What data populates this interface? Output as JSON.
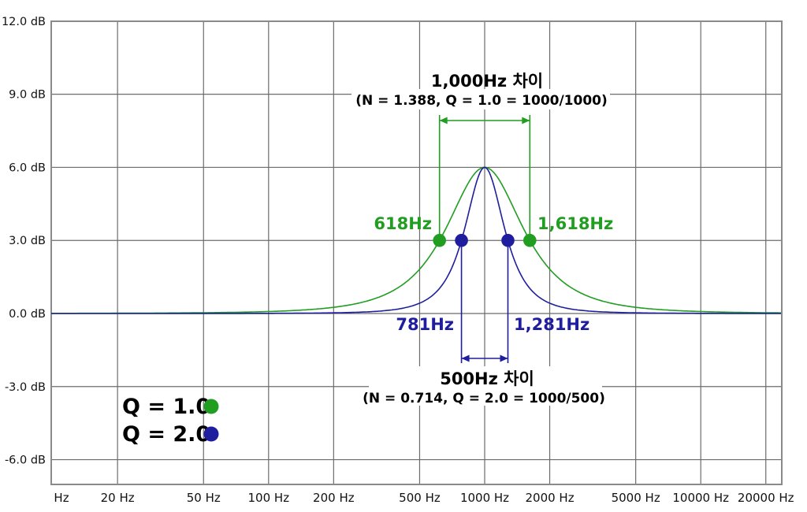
{
  "chart_data": {
    "type": "line",
    "description": "Parametric EQ peaking-filter frequency response comparison for two Q values, both centered at 1000 Hz with +6 dB gain",
    "background_color": "#ffffff",
    "grid_color": "#6b6b6b",
    "border_color": "#8a8a8a",
    "y_axis": {
      "unit": "dB",
      "min": -7,
      "max": 12,
      "ticks": [
        {
          "db": 12,
          "label": "12.0 dB"
        },
        {
          "db": 9,
          "label": "9.0 dB"
        },
        {
          "db": 6,
          "label": "6.0 dB"
        },
        {
          "db": 3,
          "label": "3.0 dB"
        },
        {
          "db": 0,
          "label": "0.0 dB"
        },
        {
          "db": -3,
          "label": "-3.0 dB"
        },
        {
          "db": -6,
          "label": "-6.0 dB"
        }
      ]
    },
    "x_axis": {
      "unit": "Hz",
      "scale": "log",
      "min_hz": 10,
      "max_hz": 23650,
      "ticks": [
        {
          "label": "Hz"
        },
        {
          "hz": 20,
          "label": "20 Hz"
        },
        {
          "hz": 50,
          "label": "50 Hz"
        },
        {
          "hz": 100,
          "label": "100 Hz"
        },
        {
          "hz": 200,
          "label": "200 Hz"
        },
        {
          "hz": 500,
          "label": "500 Hz"
        },
        {
          "hz": 1000,
          "label": "1000 Hz"
        },
        {
          "hz": 2000,
          "label": "2000 Hz"
        },
        {
          "hz": 5000,
          "label": "5000 Hz"
        },
        {
          "hz": 10000,
          "label": "10000 Hz"
        },
        {
          "hz": 20000,
          "label": "20000 Hz"
        }
      ]
    },
    "series": [
      {
        "name": "Q = 1.0",
        "color": "#219e21",
        "center_hz": 1000,
        "gain_db": 6,
        "bandwidth_hz": 1000,
        "points": [
          {
            "hz": 618,
            "db": 3,
            "label": "618Hz"
          },
          {
            "hz": 1618,
            "db": 3,
            "label": "1,618Hz"
          }
        ],
        "annotation": {
          "title": "1,000Hz 차이",
          "subtitle": "(N = 1.388, Q = 1.0 = 1000/1000)"
        }
      },
      {
        "name": "Q = 2.0",
        "color": "#1e1e9e",
        "center_hz": 1000,
        "gain_db": 6,
        "bandwidth_hz": 500,
        "points": [
          {
            "hz": 781,
            "db": 3,
            "label": "781Hz"
          },
          {
            "hz": 1281,
            "db": 3,
            "label": "1,281Hz"
          }
        ],
        "annotation": {
          "title": "500Hz 차이",
          "subtitle": "(N = 0.714, Q = 2.0 = 1000/500)"
        }
      }
    ],
    "legend": [
      {
        "label": "Q = 1.0",
        "color": "#219e21"
      },
      {
        "label": "Q = 2.0",
        "color": "#1e1e9e"
      }
    ]
  }
}
